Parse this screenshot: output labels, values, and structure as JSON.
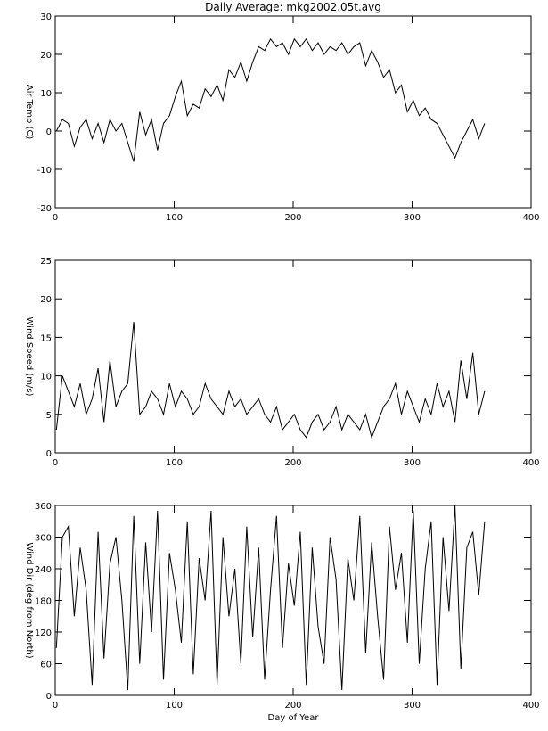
{
  "chart_data": [
    {
      "type": "line",
      "title": "Daily Average: mkg2002.05t.avg",
      "y_label": "Air Temp (C)",
      "x": [
        1,
        6,
        11,
        16,
        21,
        26,
        31,
        36,
        41,
        46,
        51,
        56,
        61,
        66,
        71,
        76,
        81,
        86,
        91,
        96,
        101,
        106,
        111,
        116,
        121,
        126,
        131,
        136,
        141,
        146,
        151,
        156,
        161,
        166,
        171,
        176,
        181,
        186,
        191,
        196,
        201,
        206,
        211,
        216,
        221,
        226,
        231,
        236,
        241,
        246,
        251,
        256,
        261,
        266,
        271,
        276,
        281,
        286,
        291,
        296,
        301,
        306,
        311,
        316,
        321,
        326,
        331,
        336,
        341,
        346,
        351,
        356,
        361
      ],
      "values": [
        0,
        3,
        2,
        -4,
        1,
        3,
        -2,
        2,
        -3,
        3,
        0,
        2,
        -3,
        -8,
        5,
        -1,
        3,
        -5,
        2,
        4,
        9,
        13,
        4,
        7,
        6,
        11,
        9,
        12,
        8,
        16,
        14,
        18,
        13,
        18,
        22,
        21,
        24,
        22,
        23,
        20,
        24,
        22,
        24,
        21,
        23,
        20,
        22,
        21,
        23,
        20,
        22,
        23,
        17,
        21,
        18,
        14,
        16,
        10,
        12,
        5,
        8,
        4,
        6,
        3,
        2,
        -1,
        -4,
        -7,
        -3,
        0,
        3,
        -2,
        2
      ],
      "color": "#000000",
      "xlim": [
        0,
        400
      ],
      "xticks": [
        0,
        100,
        200,
        300,
        400
      ],
      "ylim": [
        -20,
        30
      ],
      "yticks": [
        -20,
        -10,
        0,
        10,
        20,
        30
      ]
    },
    {
      "type": "line",
      "y_label": "Wind Speed (m/s)",
      "x": [
        1,
        6,
        11,
        16,
        21,
        26,
        31,
        36,
        41,
        46,
        51,
        56,
        61,
        66,
        71,
        76,
        81,
        86,
        91,
        96,
        101,
        106,
        111,
        116,
        121,
        126,
        131,
        136,
        141,
        146,
        151,
        156,
        161,
        166,
        171,
        176,
        181,
        186,
        191,
        196,
        201,
        206,
        211,
        216,
        221,
        226,
        231,
        236,
        241,
        246,
        251,
        256,
        261,
        266,
        271,
        276,
        281,
        286,
        291,
        296,
        301,
        306,
        311,
        316,
        321,
        326,
        331,
        336,
        341,
        346,
        351,
        356,
        361
      ],
      "values": [
        3,
        10,
        8,
        6,
        9,
        5,
        7,
        11,
        4,
        12,
        6,
        8,
        9,
        17,
        5,
        6,
        8,
        7,
        5,
        9,
        6,
        8,
        7,
        5,
        6,
        9,
        7,
        6,
        5,
        8,
        6,
        7,
        5,
        6,
        7,
        5,
        4,
        6,
        3,
        4,
        5,
        3,
        2,
        4,
        5,
        3,
        4,
        6,
        3,
        5,
        4,
        3,
        5,
        2,
        4,
        6,
        7,
        9,
        5,
        8,
        6,
        4,
        7,
        5,
        9,
        6,
        8,
        4,
        12,
        7,
        13,
        5,
        8
      ],
      "color": "#000000",
      "xlim": [
        0,
        400
      ],
      "xticks": [
        0,
        100,
        200,
        300,
        400
      ],
      "ylim": [
        0,
        25
      ],
      "yticks": [
        0,
        5,
        10,
        15,
        20,
        25
      ]
    },
    {
      "type": "line",
      "y_label": "Wind Dir (deg from North)",
      "x_label": "Day of Year",
      "x": [
        1,
        6,
        11,
        16,
        21,
        26,
        31,
        36,
        41,
        46,
        51,
        56,
        61,
        66,
        71,
        76,
        81,
        86,
        91,
        96,
        101,
        106,
        111,
        116,
        121,
        126,
        131,
        136,
        141,
        146,
        151,
        156,
        161,
        166,
        171,
        176,
        181,
        186,
        191,
        196,
        201,
        206,
        211,
        216,
        221,
        226,
        231,
        236,
        241,
        246,
        251,
        256,
        261,
        266,
        271,
        276,
        281,
        286,
        291,
        296,
        301,
        306,
        311,
        316,
        321,
        326,
        331,
        336,
        341,
        346,
        351,
        356,
        361
      ],
      "values": [
        90,
        300,
        320,
        150,
        280,
        200,
        20,
        310,
        70,
        250,
        300,
        180,
        10,
        340,
        60,
        290,
        120,
        350,
        30,
        270,
        200,
        100,
        330,
        40,
        260,
        180,
        350,
        20,
        300,
        150,
        240,
        60,
        320,
        110,
        280,
        30,
        200,
        340,
        90,
        250,
        170,
        310,
        20,
        280,
        130,
        60,
        300,
        220,
        10,
        260,
        180,
        340,
        80,
        290,
        150,
        30,
        320,
        200,
        270,
        100,
        350,
        60,
        240,
        330,
        20,
        300,
        160,
        360,
        50,
        280,
        310,
        190,
        330
      ],
      "color": "#000000",
      "xlim": [
        0,
        400
      ],
      "xticks": [
        0,
        100,
        200,
        300,
        400
      ],
      "ylim": [
        0,
        360
      ],
      "yticks": [
        0,
        60,
        120,
        180,
        240,
        300,
        360
      ]
    }
  ]
}
